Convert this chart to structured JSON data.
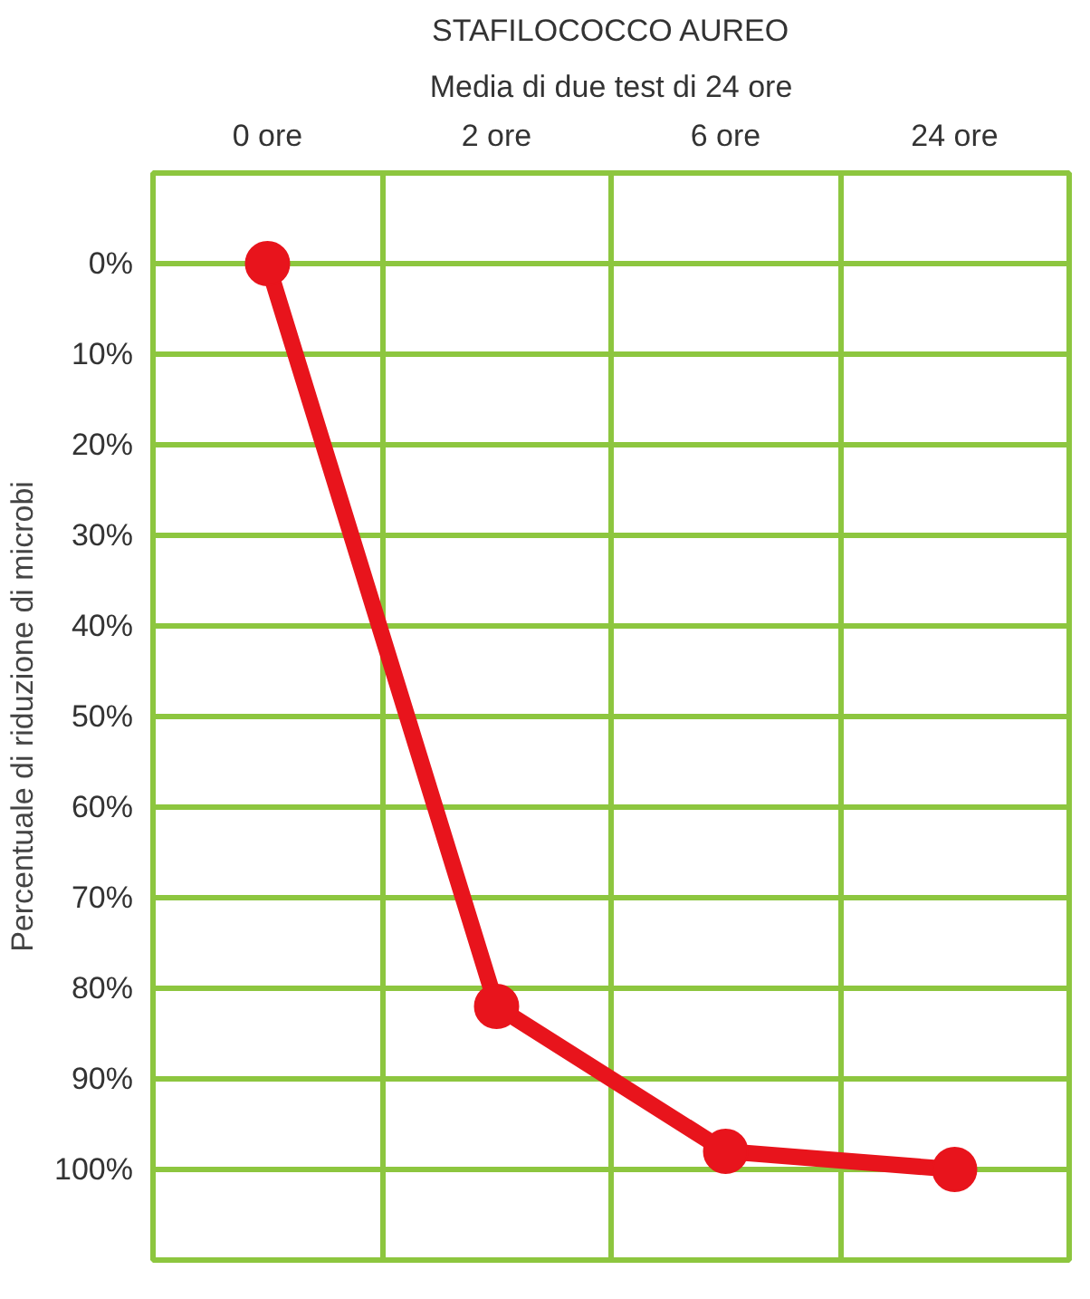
{
  "chart_data": {
    "type": "line",
    "title": "STAFILOCOCCO AUREO",
    "subtitle": "Media di due test di 24 ore",
    "ylabel": "Percentuale di riduzione di microbi",
    "categories": [
      "0 ore",
      "2 ore",
      "6 ore",
      "24 ore"
    ],
    "series": [
      {
        "color": "#e8141c",
        "values": [
          0,
          82,
          98,
          100
        ]
      }
    ],
    "ylim": [
      110,
      -10
    ],
    "yticks": [
      {
        "value": 0,
        "label": "0%"
      },
      {
        "value": 10,
        "label": "10%"
      },
      {
        "value": 20,
        "label": "20%"
      },
      {
        "value": 30,
        "label": "30%"
      },
      {
        "value": 40,
        "label": "40%"
      },
      {
        "value": 50,
        "label": "50%"
      },
      {
        "value": 60,
        "label": "60%"
      },
      {
        "value": 70,
        "label": "70%"
      },
      {
        "value": 80,
        "label": "80%"
      },
      {
        "value": 90,
        "label": "90%"
      },
      {
        "value": 100,
        "label": "100%"
      }
    ],
    "grid": true,
    "marker": "circle",
    "line_style": "solid"
  }
}
